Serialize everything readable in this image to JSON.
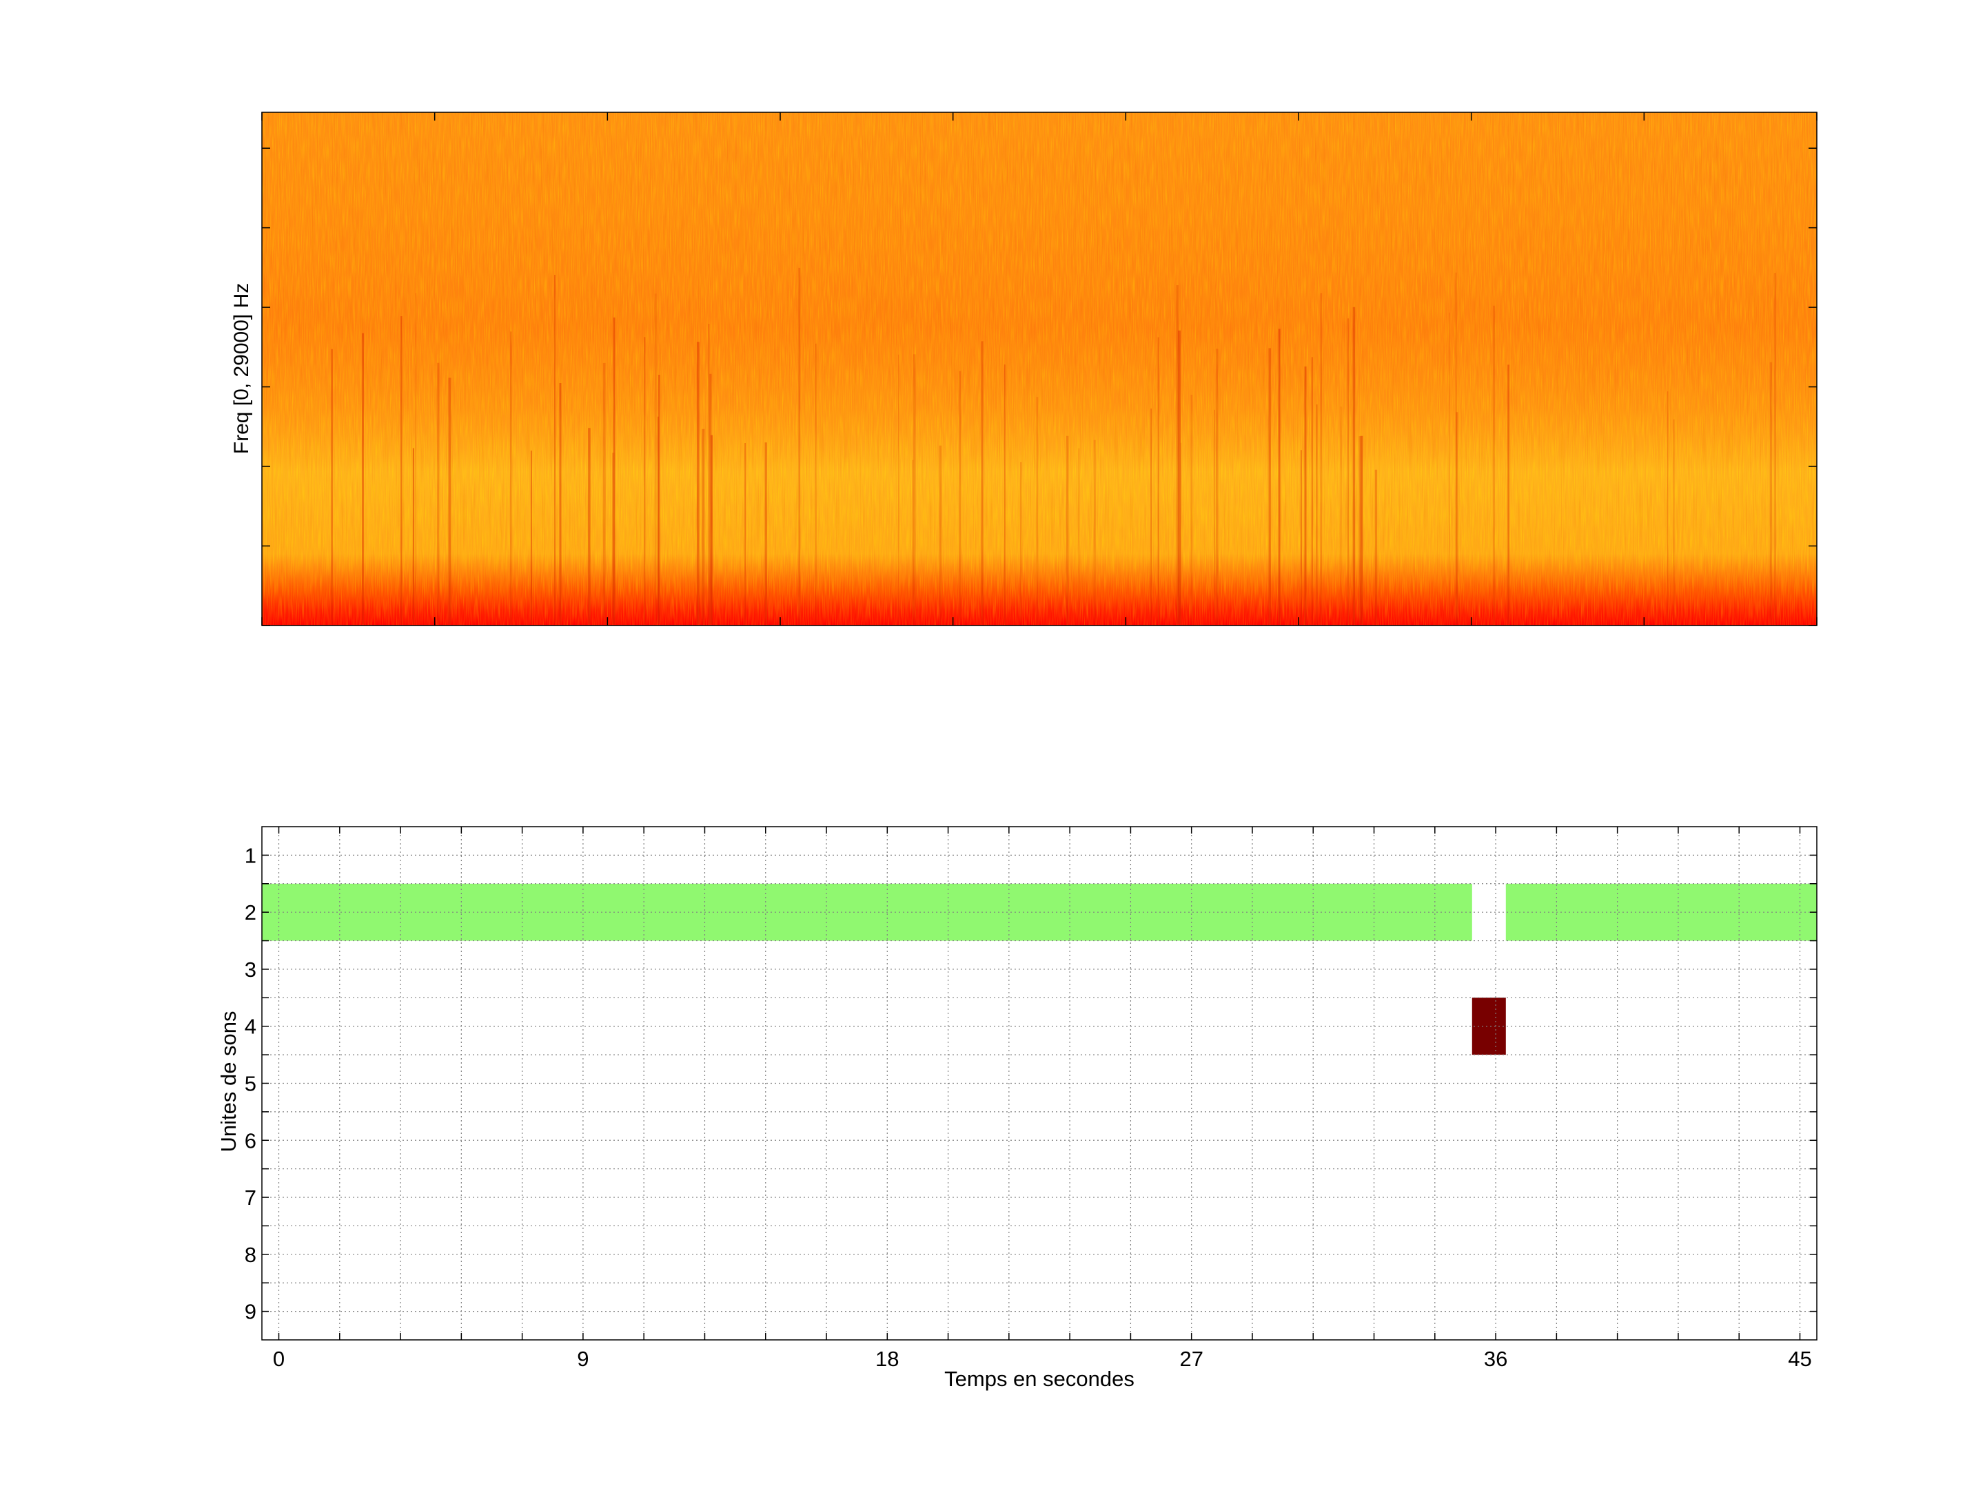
{
  "chart_data": [
    {
      "type": "heatmap",
      "title": "",
      "xlabel": "",
      "ylabel": "Freq [0, 29000] Hz",
      "ylim": [
        0,
        29000
      ],
      "grid": false,
      "colormap": "autumn",
      "colors": {
        "low": "#ff0000",
        "high": "#ffff00",
        "base": "#ff8a10"
      }
    },
    {
      "type": "heatmap",
      "title": "",
      "xlabel": "Temps en secondes",
      "ylabel": "Unites de sons",
      "x_ticks": [
        0,
        9,
        18,
        27,
        36,
        45
      ],
      "y_ticks": [
        1,
        2,
        3,
        4,
        5,
        6,
        7,
        8,
        9
      ],
      "xlim": [
        -0.5,
        45.5
      ],
      "ylim": [
        9.5,
        0.5
      ],
      "grid": true,
      "segments": [
        {
          "unit": 2,
          "start": -0.5,
          "end": 35.3,
          "color": "#90f870"
        },
        {
          "unit": 2,
          "start": 36.3,
          "end": 45.5,
          "color": "#90f870"
        },
        {
          "unit": 4,
          "start": 35.3,
          "end": 36.3,
          "color": "#780000"
        }
      ]
    }
  ]
}
